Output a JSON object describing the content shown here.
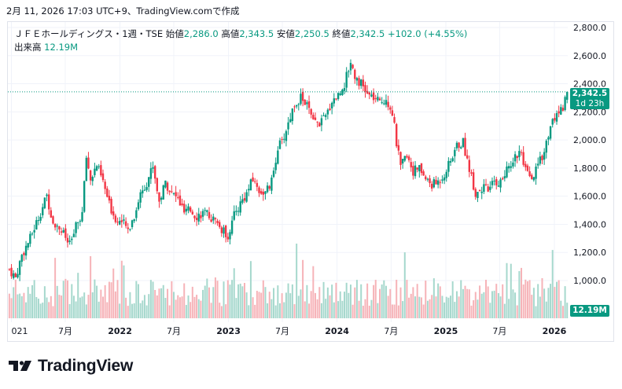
{
  "header": {
    "date_line": "2月 11, 2026 17:03 UTC+9、TradingView.comで作成"
  },
  "legend": {
    "symbol": "ＪＦＥホールディングス・1週・TSE",
    "open_label": "始値",
    "open": "2,286.0",
    "high_label": "高値",
    "high": "2,343.5",
    "low_label": "安値",
    "low": "2,250.5",
    "close_label": "終値",
    "close": "2,342.5",
    "change": "+102.0 (+4.55%)",
    "volume_label": "出来高",
    "volume": "12.19M"
  },
  "price_badge": {
    "price": "2,342.5",
    "countdown": "1d 23h"
  },
  "volume_badge": "12.19M",
  "brand": {
    "name": "TradingView"
  },
  "colors": {
    "up": "#089981",
    "down": "#f23645",
    "axis_text": "#131722",
    "grid": "#f0f3fa",
    "border": "#e0e3eb"
  },
  "chart_data": {
    "type": "candlestick",
    "interval": "1 week",
    "y_axis": {
      "position": "right",
      "range": [
        900,
        2850
      ],
      "ticks": [
        "2,800.0",
        "2,600.0",
        "2,400.0",
        "2,200.0",
        "2,000.0",
        "1,800.0",
        "1,600.0",
        "1,400.0",
        "1,200.0",
        "1,000.0"
      ]
    },
    "x_axis": {
      "range": [
        "2020-12-20",
        "2026-02-15"
      ],
      "ticks": [
        {
          "label": "021",
          "date": "2021-01-01"
        },
        {
          "label": "7月",
          "date": "2021-07-01"
        },
        {
          "label": "2022",
          "date": "2022-01-01"
        },
        {
          "label": "7月",
          "date": "2022-07-01"
        },
        {
          "label": "2023",
          "date": "2023-01-01"
        },
        {
          "label": "7月",
          "date": "2023-07-01"
        },
        {
          "label": "2024",
          "date": "2024-01-01"
        },
        {
          "label": "7月",
          "date": "2024-07-01"
        },
        {
          "label": "2025",
          "date": "2025-01-01"
        },
        {
          "label": "7月",
          "date": "2025-07-01"
        },
        {
          "label": "2026",
          "date": "2026-01-01"
        }
      ]
    },
    "last_price": 2342.5,
    "price_path": [
      [
        "2020-12-25",
        1080
      ],
      [
        "2021-01-15",
        1020
      ],
      [
        "2021-02-05",
        1180
      ],
      [
        "2021-03-05",
        1300
      ],
      [
        "2021-04-02",
        1450
      ],
      [
        "2021-04-30",
        1600
      ],
      [
        "2021-05-21",
        1420
      ],
      [
        "2021-06-11",
        1380
      ],
      [
        "2021-06-25",
        1330
      ],
      [
        "2021-07-16",
        1250
      ],
      [
        "2021-08-06",
        1380
      ],
      [
        "2021-08-27",
        1480
      ],
      [
        "2021-09-10",
        1880
      ],
      [
        "2021-09-24",
        1720
      ],
      [
        "2021-10-15",
        1820
      ],
      [
        "2021-11-05",
        1700
      ],
      [
        "2021-11-26",
        1540
      ],
      [
        "2021-12-17",
        1440
      ],
      [
        "2022-01-07",
        1420
      ],
      [
        "2022-01-28",
        1360
      ],
      [
        "2022-02-18",
        1460
      ],
      [
        "2022-03-11",
        1620
      ],
      [
        "2022-04-01",
        1700
      ],
      [
        "2022-04-22",
        1820
      ],
      [
        "2022-05-13",
        1560
      ],
      [
        "2022-06-03",
        1700
      ],
      [
        "2022-06-24",
        1620
      ],
      [
        "2022-07-15",
        1580
      ],
      [
        "2022-08-05",
        1480
      ],
      [
        "2022-08-26",
        1500
      ],
      [
        "2022-09-16",
        1460
      ],
      [
        "2022-10-07",
        1480
      ],
      [
        "2022-10-28",
        1460
      ],
      [
        "2022-11-18",
        1420
      ],
      [
        "2022-12-09",
        1360
      ],
      [
        "2022-12-30",
        1320
      ],
      [
        "2023-01-20",
        1460
      ],
      [
        "2023-02-10",
        1550
      ],
      [
        "2023-03-03",
        1620
      ],
      [
        "2023-03-24",
        1720
      ],
      [
        "2023-04-14",
        1640
      ],
      [
        "2023-05-05",
        1620
      ],
      [
        "2023-05-26",
        1700
      ],
      [
        "2023-06-16",
        1950
      ],
      [
        "2023-06-30",
        1980
      ],
      [
        "2023-07-21",
        2120
      ],
      [
        "2023-08-11",
        2260
      ],
      [
        "2023-09-01",
        2300
      ],
      [
        "2023-09-22",
        2250
      ],
      [
        "2023-10-13",
        2120
      ],
      [
        "2023-11-03",
        2120
      ],
      [
        "2023-11-24",
        2160
      ],
      [
        "2023-12-15",
        2280
      ],
      [
        "2024-01-05",
        2320
      ],
      [
        "2024-01-26",
        2400
      ],
      [
        "2024-02-16",
        2560
      ],
      [
        "2024-03-01",
        2460
      ],
      [
        "2024-03-22",
        2400
      ],
      [
        "2024-04-12",
        2320
      ],
      [
        "2024-05-03",
        2300
      ],
      [
        "2024-05-24",
        2260
      ],
      [
        "2024-06-14",
        2300
      ],
      [
        "2024-07-05",
        2200
      ],
      [
        "2024-07-19",
        1980
      ],
      [
        "2024-08-02",
        1800
      ],
      [
        "2024-08-23",
        1900
      ],
      [
        "2024-09-13",
        1780
      ],
      [
        "2024-10-04",
        1800
      ],
      [
        "2024-10-25",
        1720
      ],
      [
        "2024-11-15",
        1680
      ],
      [
        "2024-12-06",
        1700
      ],
      [
        "2024-12-27",
        1760
      ],
      [
        "2025-01-17",
        1850
      ],
      [
        "2025-02-07",
        1960
      ],
      [
        "2025-02-28",
        1980
      ],
      [
        "2025-03-21",
        1800
      ],
      [
        "2025-04-11",
        1620
      ],
      [
        "2025-05-02",
        1660
      ],
      [
        "2025-05-23",
        1640
      ],
      [
        "2025-06-13",
        1700
      ],
      [
        "2025-07-04",
        1700
      ],
      [
        "2025-07-25",
        1780
      ],
      [
        "2025-08-15",
        1860
      ],
      [
        "2025-09-05",
        1920
      ],
      [
        "2025-09-26",
        1780
      ],
      [
        "2025-10-17",
        1700
      ],
      [
        "2025-11-07",
        1820
      ],
      [
        "2025-11-28",
        1920
      ],
      [
        "2025-12-19",
        2100
      ],
      [
        "2026-01-09",
        2180
      ],
      [
        "2026-01-30",
        2240
      ],
      [
        "2026-02-13",
        2342.5
      ]
    ]
  }
}
